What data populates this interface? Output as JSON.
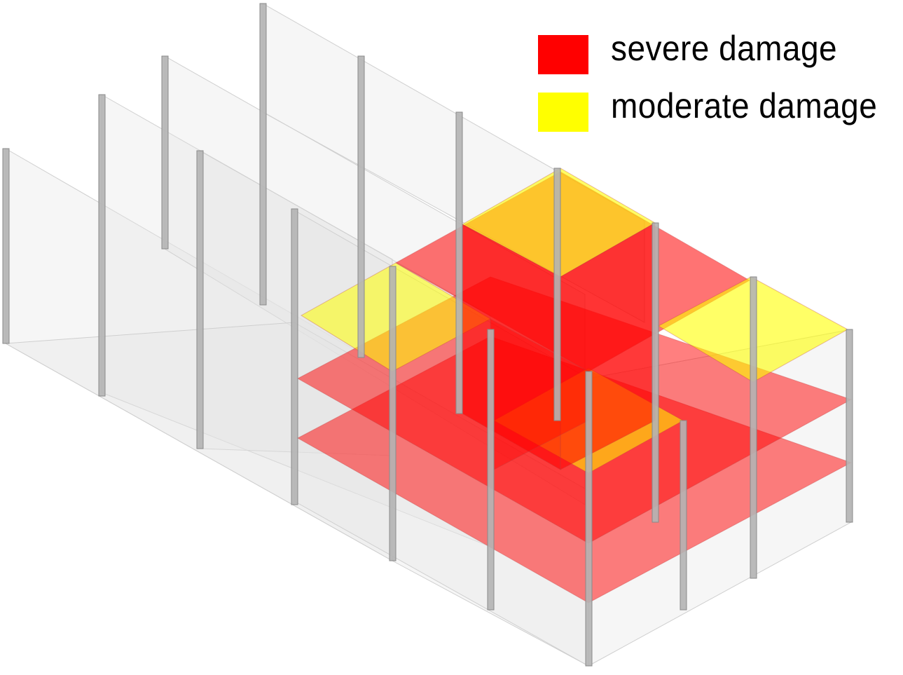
{
  "legend": {
    "items": [
      {
        "label": "severe damage",
        "color": "#ff0000"
      },
      {
        "label": "moderate damage",
        "color": "#ffff00"
      }
    ]
  },
  "colors": {
    "severe": "#ff0000",
    "moderate": "#ffff00",
    "column": "#b4b4b4",
    "wall": "#e6e6e6"
  }
}
